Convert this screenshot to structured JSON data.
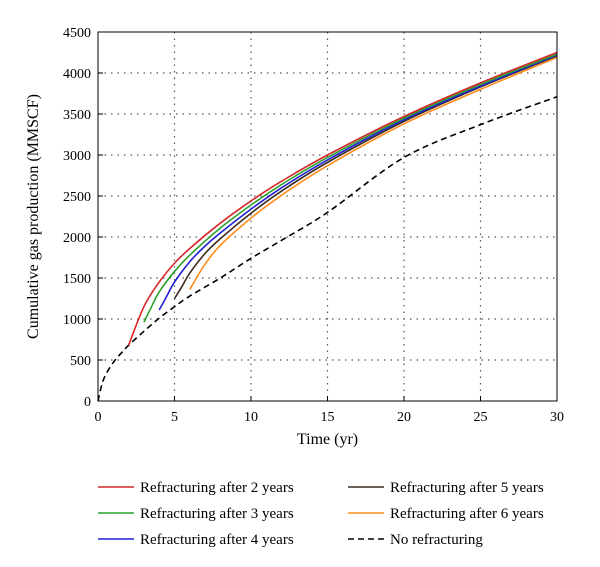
{
  "chart_data": {
    "type": "line",
    "title": "",
    "xlabel": "Time (yr)",
    "ylabel": "Cumulative gas production (MMSCF)",
    "xlim": [
      0,
      30
    ],
    "ylim": [
      0,
      4500
    ],
    "xticks": [
      0,
      5,
      10,
      15,
      20,
      25,
      30
    ],
    "yticks": [
      0,
      500,
      1000,
      1500,
      2000,
      2500,
      3000,
      3500,
      4000,
      4500
    ],
    "grid": true,
    "legend_position": "bottom",
    "series": [
      {
        "name": "Refracturing after 2 years",
        "color": "#d62728",
        "dash": "solid",
        "x": [
          2,
          3,
          4,
          5,
          6,
          8,
          10,
          12,
          15,
          20,
          25,
          30
        ],
        "y": [
          680,
          1150,
          1450,
          1680,
          1860,
          2170,
          2440,
          2680,
          3000,
          3470,
          3880,
          4250
        ]
      },
      {
        "name": "Refracturing after 3 years",
        "color": "#2ca02c",
        "dash": "solid",
        "x": [
          3,
          3.5,
          4,
          5,
          6,
          8,
          10,
          12,
          15,
          20,
          25,
          30
        ],
        "y": [
          960,
          1150,
          1330,
          1580,
          1780,
          2110,
          2390,
          2640,
          2970,
          3450,
          3860,
          4230
        ]
      },
      {
        "name": "Refracturing after 4 years",
        "color": "#1f1fd6",
        "dash": "solid",
        "x": [
          4,
          4.5,
          5,
          6,
          7,
          8,
          10,
          12,
          15,
          20,
          25,
          30
        ],
        "y": [
          1110,
          1280,
          1450,
          1700,
          1890,
          2050,
          2340,
          2600,
          2940,
          3430,
          3840,
          4220
        ]
      },
      {
        "name": "Refracturing after 5 years",
        "color": "#3d2b1f",
        "dash": "solid",
        "x": [
          5,
          5.5,
          6,
          7,
          8,
          10,
          12,
          15,
          20,
          25,
          30
        ],
        "y": [
          1250,
          1400,
          1560,
          1800,
          1980,
          2290,
          2560,
          2910,
          3410,
          3830,
          4210
        ]
      },
      {
        "name": "Refracturing after 6 years",
        "color": "#ff8c1a",
        "dash": "solid",
        "x": [
          6,
          6.5,
          7,
          8,
          10,
          12,
          15,
          20,
          25,
          30
        ],
        "y": [
          1360,
          1520,
          1670,
          1900,
          2230,
          2510,
          2870,
          3380,
          3800,
          4190
        ]
      },
      {
        "name": "No refracturing",
        "color": "#000000",
        "dash": "dashed",
        "x": [
          0,
          0.25,
          0.5,
          1,
          1.5,
          2,
          3,
          4,
          5,
          6,
          8,
          10,
          12,
          15,
          20,
          25,
          30
        ],
        "y": [
          0,
          200,
          320,
          470,
          580,
          680,
          850,
          1010,
          1150,
          1280,
          1500,
          1740,
          1960,
          2300,
          2970,
          3370,
          3710
        ]
      }
    ]
  }
}
